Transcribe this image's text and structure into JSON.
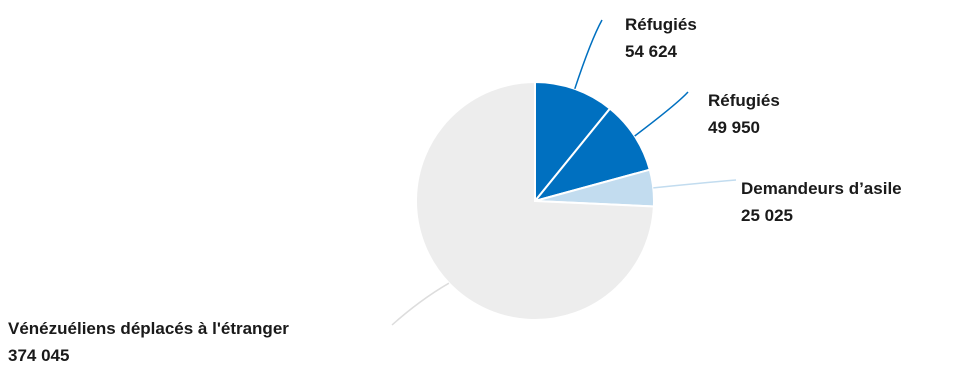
{
  "chart_data": {
    "type": "pie",
    "title": "",
    "slices": [
      {
        "name": "Réfugiés",
        "value_label": "54 624",
        "value": 54624,
        "color": "#0070c0"
      },
      {
        "name": "Réfugiés",
        "value_label": "49 950",
        "value": 49950,
        "color": "#0070c0"
      },
      {
        "name": "Demandeurs d’asile",
        "value_label": "25 025",
        "value": 25025,
        "color": "#c2dcef"
      },
      {
        "name": "Vénézuéliens déplacés à l'étranger",
        "value_label": "374 045",
        "value": 374045,
        "color": "#ededed"
      }
    ],
    "leader_line_color": "#0070c0",
    "start_angle": "12 o'clock, clockwise"
  }
}
